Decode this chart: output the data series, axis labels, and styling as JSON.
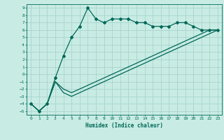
{
  "title": "",
  "xlabel": "Humidex (Indice chaleur)",
  "ylabel": "",
  "bg_color": "#c8ece4",
  "grid_color": "#a8d4cc",
  "line_color": "#006858",
  "xlim": [
    -0.5,
    23.5
  ],
  "ylim": [
    -5.5,
    9.5
  ],
  "xticks": [
    0,
    1,
    2,
    3,
    4,
    5,
    6,
    7,
    8,
    9,
    10,
    11,
    12,
    13,
    14,
    15,
    16,
    17,
    18,
    19,
    20,
    21,
    22,
    23
  ],
  "yticks": [
    -5,
    -4,
    -3,
    -2,
    -1,
    0,
    1,
    2,
    3,
    4,
    5,
    6,
    7,
    8,
    9
  ],
  "series1_x": [
    0,
    1,
    2,
    3,
    4,
    5,
    6,
    7,
    8,
    9,
    10,
    11,
    12,
    13,
    14,
    15,
    16,
    17,
    18,
    19,
    20,
    21,
    22,
    23
  ],
  "series1_y": [
    -4,
    -5,
    -4,
    -0.5,
    2.5,
    5,
    6.5,
    9,
    7.5,
    7,
    7.5,
    7.5,
    7.5,
    7,
    7,
    6.5,
    6.5,
    6.5,
    7,
    7,
    6.5,
    6,
    6,
    6
  ],
  "series2_x": [
    0,
    1,
    2,
    3,
    4,
    5,
    6,
    7,
    8,
    9,
    10,
    11,
    12,
    13,
    14,
    15,
    16,
    17,
    18,
    19,
    20,
    21,
    22,
    23
  ],
  "series2_y": [
    -4,
    -5,
    -4,
    -1,
    -2.5,
    -3,
    -2.5,
    -2,
    -1.5,
    -1,
    -0.5,
    0,
    0.5,
    1,
    1.5,
    2,
    2.5,
    3,
    3.5,
    4,
    4.5,
    5,
    5.5,
    6
  ],
  "series3_x": [
    0,
    1,
    2,
    3,
    4,
    5,
    6,
    7,
    8,
    9,
    10,
    11,
    12,
    13,
    14,
    15,
    16,
    17,
    18,
    19,
    20,
    21,
    22,
    23
  ],
  "series3_y": [
    -4,
    -5,
    -4,
    -1,
    -2,
    -2.5,
    -2,
    -1.5,
    -1,
    -0.5,
    0,
    0.5,
    1,
    1.5,
    2,
    2.5,
    3,
    3.5,
    4,
    4.5,
    5,
    5.5,
    6,
    6
  ]
}
